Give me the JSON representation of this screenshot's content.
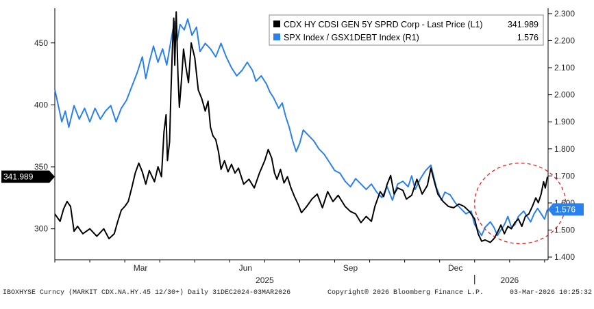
{
  "chart_data": {
    "type": "line",
    "title": "",
    "xlabel": "",
    "ylabel_left": "",
    "ylabel_right": "",
    "x_range": [
      0,
      14.1
    ],
    "ylim_left": [
      275,
      478
    ],
    "ylim_right": [
      1.39,
      2.32
    ],
    "grid": false,
    "legend": "top-right",
    "left_ticks": [
      "300",
      "350",
      "400",
      "450"
    ],
    "right_ticks": [
      "1.400",
      "1.500",
      "1.600",
      "1.700",
      "1.800",
      "1.900",
      "2.000",
      "2.100",
      "2.200",
      "2.300"
    ],
    "month_ticks": [
      {
        "label": "Mar",
        "t": 2.45
      },
      {
        "label": "Jun",
        "t": 5.45
      },
      {
        "label": "Sep",
        "t": 8.45
      },
      {
        "label": "Dec",
        "t": 11.45
      }
    ],
    "year_labels": [
      {
        "label": "2025",
        "t": 6.0
      },
      {
        "label": "2026",
        "t": 13.0
      }
    ],
    "series": [
      {
        "name": "CDX HY CDSI GEN 5Y SPRD Corp - Last Price (L1)",
        "legend_value": "341.989",
        "axis": "left",
        "color": "#000000",
        "points": [
          [
            0.0,
            312
          ],
          [
            0.15,
            306
          ],
          [
            0.25,
            316
          ],
          [
            0.35,
            322
          ],
          [
            0.45,
            318
          ],
          [
            0.55,
            298
          ],
          [
            0.65,
            302
          ],
          [
            0.8,
            296
          ],
          [
            1.0,
            300
          ],
          [
            1.2,
            294
          ],
          [
            1.4,
            300
          ],
          [
            1.55,
            292
          ],
          [
            1.7,
            296
          ],
          [
            1.8,
            306
          ],
          [
            1.9,
            315
          ],
          [
            2.0,
            318
          ],
          [
            2.1,
            322
          ],
          [
            2.2,
            333
          ],
          [
            2.3,
            345
          ],
          [
            2.4,
            353
          ],
          [
            2.5,
            346
          ],
          [
            2.6,
            336
          ],
          [
            2.7,
            347
          ],
          [
            2.85,
            338
          ],
          [
            2.95,
            350
          ],
          [
            3.05,
            342
          ],
          [
            3.12,
            378
          ],
          [
            3.18,
            392
          ],
          [
            3.22,
            355
          ],
          [
            3.28,
            370
          ],
          [
            3.32,
            410
          ],
          [
            3.36,
            445
          ],
          [
            3.4,
            470
          ],
          [
            3.43,
            432
          ],
          [
            3.47,
            475
          ],
          [
            3.52,
            425
          ],
          [
            3.56,
            398
          ],
          [
            3.62,
            420
          ],
          [
            3.68,
            445
          ],
          [
            3.75,
            430
          ],
          [
            3.82,
            418
          ],
          [
            3.9,
            450
          ],
          [
            4.0,
            438
          ],
          [
            4.1,
            412
          ],
          [
            4.2,
            405
          ],
          [
            4.3,
            395
          ],
          [
            4.38,
            403
          ],
          [
            4.45,
            382
          ],
          [
            4.52,
            375
          ],
          [
            4.6,
            372
          ],
          [
            4.68,
            362
          ],
          [
            4.75,
            348
          ],
          [
            4.85,
            355
          ],
          [
            4.95,
            346
          ],
          [
            5.05,
            352
          ],
          [
            5.15,
            345
          ],
          [
            5.25,
            349
          ],
          [
            5.4,
            336
          ],
          [
            5.55,
            340
          ],
          [
            5.7,
            333
          ],
          [
            5.85,
            345
          ],
          [
            6.0,
            355
          ],
          [
            6.1,
            364
          ],
          [
            6.2,
            357
          ],
          [
            6.28,
            345
          ],
          [
            6.35,
            340
          ],
          [
            6.45,
            348
          ],
          [
            6.55,
            337
          ],
          [
            6.65,
            342
          ],
          [
            6.75,
            333
          ],
          [
            6.85,
            326
          ],
          [
            6.95,
            320
          ],
          [
            7.05,
            313
          ],
          [
            7.2,
            318
          ],
          [
            7.35,
            324
          ],
          [
            7.5,
            328
          ],
          [
            7.65,
            317
          ],
          [
            7.8,
            330
          ],
          [
            7.95,
            322
          ],
          [
            8.1,
            327
          ],
          [
            8.3,
            318
          ],
          [
            8.45,
            314
          ],
          [
            8.6,
            312
          ],
          [
            8.75,
            305
          ],
          [
            8.9,
            310
          ],
          [
            9.05,
            306
          ],
          [
            9.15,
            318
          ],
          [
            9.3,
            330
          ],
          [
            9.4,
            326
          ],
          [
            9.5,
            336
          ],
          [
            9.6,
            343
          ],
          [
            9.7,
            328
          ],
          [
            9.8,
            333
          ],
          [
            9.95,
            331
          ],
          [
            10.05,
            324
          ],
          [
            10.2,
            327
          ],
          [
            10.35,
            340
          ],
          [
            10.5,
            328
          ],
          [
            10.65,
            335
          ],
          [
            10.75,
            349
          ],
          [
            10.85,
            338
          ],
          [
            10.95,
            328
          ],
          [
            11.1,
            322
          ],
          [
            11.25,
            318
          ],
          [
            11.4,
            317
          ],
          [
            11.55,
            320
          ],
          [
            11.7,
            318
          ],
          [
            11.85,
            314
          ],
          [
            12.0,
            308
          ],
          [
            12.1,
            296
          ],
          [
            12.2,
            290
          ],
          [
            12.3,
            291
          ],
          [
            12.45,
            289
          ],
          [
            12.55,
            292
          ],
          [
            12.65,
            297
          ],
          [
            12.75,
            303
          ],
          [
            12.85,
            296
          ],
          [
            12.95,
            302
          ],
          [
            13.05,
            300
          ],
          [
            13.15,
            305
          ],
          [
            13.25,
            308
          ],
          [
            13.35,
            302
          ],
          [
            13.45,
            310
          ],
          [
            13.55,
            312
          ],
          [
            13.65,
            318
          ],
          [
            13.75,
            325
          ],
          [
            13.82,
            321
          ],
          [
            13.9,
            328
          ],
          [
            13.97,
            338
          ],
          [
            14.02,
            333
          ],
          [
            14.08,
            342
          ]
        ]
      },
      {
        "name": "SPX Index / GSX1DEBT Index (R1)",
        "legend_value": "1.576",
        "axis": "right",
        "color": "#2a80ec",
        "points": [
          [
            0.0,
            2.02
          ],
          [
            0.1,
            1.96
          ],
          [
            0.2,
            1.9
          ],
          [
            0.3,
            1.94
          ],
          [
            0.4,
            1.88
          ],
          [
            0.55,
            1.96
          ],
          [
            0.7,
            1.91
          ],
          [
            0.85,
            1.95
          ],
          [
            1.0,
            1.9
          ],
          [
            1.15,
            1.95
          ],
          [
            1.3,
            1.91
          ],
          [
            1.45,
            1.94
          ],
          [
            1.6,
            1.96
          ],
          [
            1.75,
            1.9
          ],
          [
            1.9,
            1.95
          ],
          [
            2.05,
            1.98
          ],
          [
            2.2,
            2.03
          ],
          [
            2.35,
            2.08
          ],
          [
            2.5,
            2.14
          ],
          [
            2.6,
            2.06
          ],
          [
            2.7,
            2.12
          ],
          [
            2.82,
            2.18
          ],
          [
            2.95,
            2.12
          ],
          [
            3.08,
            2.17
          ],
          [
            3.2,
            2.11
          ],
          [
            3.32,
            2.2
          ],
          [
            3.42,
            2.27
          ],
          [
            3.5,
            2.2
          ],
          [
            3.58,
            2.26
          ],
          [
            3.7,
            2.24
          ],
          [
            3.8,
            2.28
          ],
          [
            3.92,
            2.22
          ],
          [
            4.05,
            2.25
          ],
          [
            4.15,
            2.16
          ],
          [
            4.3,
            2.19
          ],
          [
            4.45,
            2.17
          ],
          [
            4.6,
            2.14
          ],
          [
            4.75,
            2.19
          ],
          [
            4.9,
            2.14
          ],
          [
            5.05,
            2.1
          ],
          [
            5.2,
            2.07
          ],
          [
            5.35,
            2.09
          ],
          [
            5.5,
            2.12
          ],
          [
            5.65,
            2.09
          ],
          [
            5.75,
            2.05
          ],
          [
            5.9,
            2.07
          ],
          [
            6.05,
            2.04
          ],
          [
            6.15,
            2.01
          ],
          [
            6.25,
            1.99
          ],
          [
            6.4,
            1.95
          ],
          [
            6.5,
            1.97
          ],
          [
            6.6,
            1.92
          ],
          [
            6.7,
            1.88
          ],
          [
            6.8,
            1.83
          ],
          [
            6.9,
            1.79
          ],
          [
            7.0,
            1.82
          ],
          [
            7.1,
            1.87
          ],
          [
            7.25,
            1.85
          ],
          [
            7.4,
            1.83
          ],
          [
            7.55,
            1.8
          ],
          [
            7.7,
            1.78
          ],
          [
            7.85,
            1.75
          ],
          [
            8.0,
            1.72
          ],
          [
            8.15,
            1.71
          ],
          [
            8.3,
            1.68
          ],
          [
            8.45,
            1.66
          ],
          [
            8.6,
            1.69
          ],
          [
            8.75,
            1.67
          ],
          [
            8.9,
            1.65
          ],
          [
            9.05,
            1.67
          ],
          [
            9.2,
            1.64
          ],
          [
            9.35,
            1.62
          ],
          [
            9.5,
            1.66
          ],
          [
            9.65,
            1.61
          ],
          [
            9.8,
            1.67
          ],
          [
            9.95,
            1.68
          ],
          [
            10.1,
            1.66
          ],
          [
            10.2,
            1.7
          ],
          [
            10.3,
            1.65
          ],
          [
            10.45,
            1.69
          ],
          [
            10.6,
            1.72
          ],
          [
            10.75,
            1.74
          ],
          [
            10.9,
            1.66
          ],
          [
            11.05,
            1.61
          ],
          [
            11.15,
            1.64
          ],
          [
            11.3,
            1.63
          ],
          [
            11.45,
            1.6
          ],
          [
            11.6,
            1.58
          ],
          [
            11.75,
            1.56
          ],
          [
            11.9,
            1.57
          ],
          [
            12.0,
            1.52
          ],
          [
            12.1,
            1.5
          ],
          [
            12.2,
            1.48
          ],
          [
            12.3,
            1.51
          ],
          [
            12.45,
            1.53
          ],
          [
            12.55,
            1.51
          ],
          [
            12.65,
            1.48
          ],
          [
            12.75,
            1.5
          ],
          [
            12.85,
            1.52
          ],
          [
            12.95,
            1.55
          ],
          [
            13.05,
            1.51
          ],
          [
            13.15,
            1.52
          ],
          [
            13.25,
            1.55
          ],
          [
            13.4,
            1.57
          ],
          [
            13.5,
            1.55
          ],
          [
            13.6,
            1.53
          ],
          [
            13.7,
            1.56
          ],
          [
            13.8,
            1.58
          ],
          [
            13.9,
            1.56
          ],
          [
            14.0,
            1.54
          ],
          [
            14.08,
            1.576
          ]
        ]
      }
    ],
    "annotation": {
      "shape": "dashed-ellipse",
      "color": "#e02020",
      "t_range": [
        12.0,
        14.6
      ],
      "left_range": [
        288,
        353
      ]
    }
  },
  "flags": {
    "left_value": "341.989",
    "right_value": "1.576"
  },
  "footer": {
    "source": "IBOXHYSE Curncy (MARKIT CDX.NA.HY.45 12/30+) Daily 31DEC2024-03MAR2026",
    "copyright": "Copyright® 2026 Bloomberg Finance L.P.",
    "timestamp": "03-Mar-2026 10:25:32"
  }
}
